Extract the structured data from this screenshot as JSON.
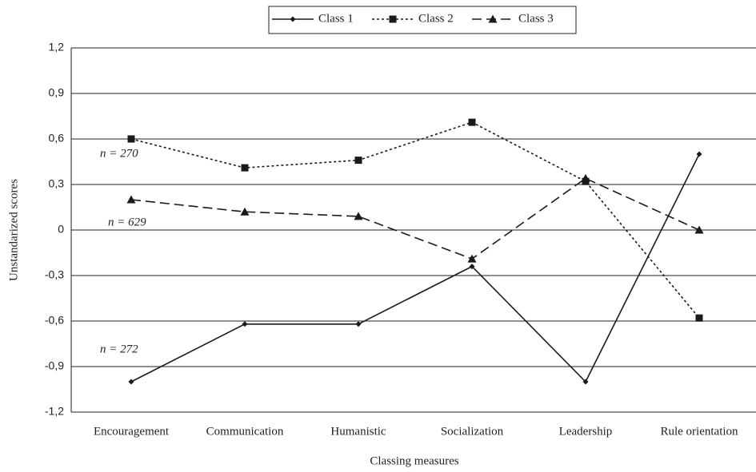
{
  "chart_data": {
    "type": "line",
    "x_label": "Classing measures",
    "y_label": "Unstandarized scores",
    "categories": [
      "Encouragement",
      "Communication",
      "Humanistic",
      "Socialization",
      "Leadership",
      "Rule orientation"
    ],
    "series": [
      {
        "name": "Class 1",
        "color": "#1a1a1a",
        "line_style": "solid",
        "marker": "diamond",
        "values": [
          -1.0,
          -0.62,
          -0.62,
          -0.24,
          -1.0,
          0.5
        ]
      },
      {
        "name": "Class 2",
        "color": "#1a1a1a",
        "line_style": "dotted",
        "marker": "square",
        "values": [
          0.6,
          0.41,
          0.46,
          0.71,
          0.32,
          -0.58
        ]
      },
      {
        "name": "Class 3",
        "color": "#1a1a1a",
        "line_style": "dashed",
        "marker": "triangle",
        "values": [
          0.2,
          0.12,
          0.09,
          -0.19,
          0.34,
          0.0
        ]
      }
    ],
    "ylim": [
      -1.2,
      1.2
    ],
    "yticks": [
      {
        "value": -1.2,
        "label": "-1,2"
      },
      {
        "value": -0.9,
        "label": "-0,9"
      },
      {
        "value": -0.6,
        "label": "-0,6"
      },
      {
        "value": -0.3,
        "label": "-0,3"
      },
      0,
      {
        "value": 0.3,
        "label": "0,3"
      },
      {
        "value": 0.6,
        "label": "0,6"
      },
      {
        "value": 0.9,
        "label": "0,9"
      },
      {
        "value": 1.2,
        "label": "1,2"
      }
    ],
    "grid": true,
    "legend": "top",
    "annotations": [
      "n = 270",
      "n = 629",
      "n = 272"
    ]
  }
}
